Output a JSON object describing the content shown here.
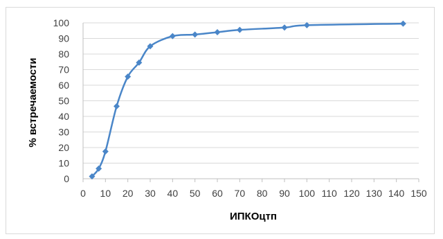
{
  "chart_data": {
    "type": "line",
    "xlabel": "ИПКОцтп",
    "ylabel": "% встречаемости",
    "xlim": [
      0,
      150
    ],
    "ylim": [
      0,
      100
    ],
    "x_ticks": [
      0,
      10,
      20,
      30,
      40,
      50,
      60,
      70,
      80,
      90,
      100,
      110,
      120,
      130,
      140,
      150
    ],
    "y_ticks": [
      0,
      10,
      20,
      30,
      40,
      50,
      60,
      70,
      80,
      90,
      100
    ],
    "grid": "horizontal",
    "legend": "none",
    "series": [
      {
        "x": [
          4,
          7,
          10,
          15,
          20,
          25,
          30,
          40,
          50,
          60,
          70,
          90,
          100,
          143
        ],
        "y": [
          1.5,
          6.5,
          17.5,
          46.5,
          65.5,
          74.5,
          85,
          91.5,
          92.5,
          94,
          95.5,
          97,
          98.5,
          99.5
        ]
      }
    ],
    "colors": {
      "line": "#4a86c8",
      "grid": "#d9d9d9",
      "axis": "#bfbfbf"
    }
  }
}
